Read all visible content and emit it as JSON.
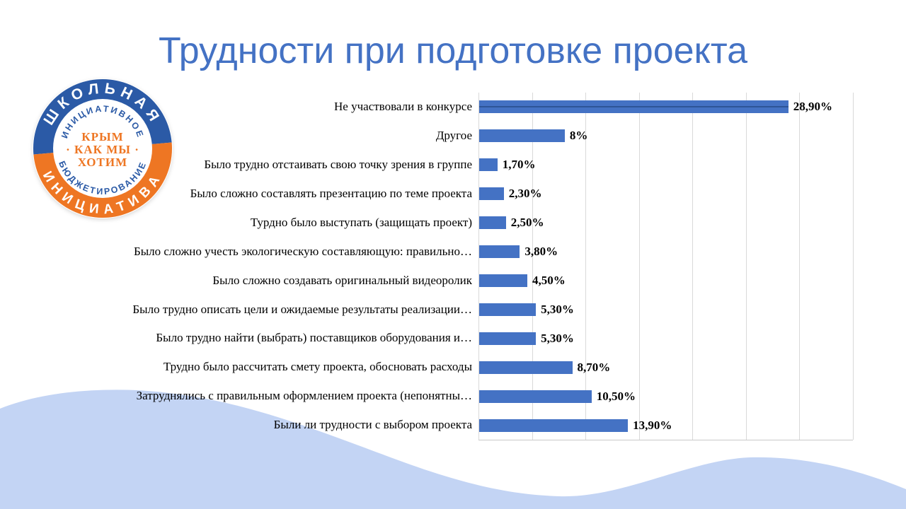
{
  "slide": {
    "title": "Трудности при подготовке проекта"
  },
  "colors": {
    "title": "#4472C4",
    "bar": "#4472C4",
    "bar_inner_line": "#2E5597",
    "gridline": "#D9D9D9",
    "axis_line": "#C9C9C9",
    "wave": "#C3D4F4",
    "logo_blue": "#2B5AA6",
    "logo_orange": "#EE7623",
    "label_text": "#000000"
  },
  "logo": {
    "outer_top": "ШКОЛЬНАЯ",
    "outer_bottom": "ИНИЦИАТИВА",
    "inner_top": "ИНИЦИАТИВНОЕ",
    "inner_bottom": "БЮДЖЕТИРОВАНИЕ",
    "center_line1": "КРЫМ",
    "center_line2": "· КАК МЫ ·",
    "center_line3": "ХОТИМ"
  },
  "chart_data": {
    "type": "bar",
    "orientation": "horizontal",
    "title": "",
    "xlabel": "",
    "ylabel": "",
    "xlim": [
      0,
      35
    ],
    "gridline_step": 5,
    "grid": true,
    "legend": false,
    "value_labels_bold": true,
    "first_bar_center_line": true,
    "categories": [
      "Не участвовали в конкурсе",
      "Другое",
      "Было трудно отстаивать свою точку зрения в группе",
      "Было сложно составлять презентацию по теме проекта",
      "Турдно было выступать (защищать проект)",
      "Было сложно учесть экологическую составляющую: правильно…",
      "Было сложно создавать оригинальный видеоролик",
      "Было трудно описать цели и ожидаемые результаты реализации…",
      "Было трудно найти (выбрать) поставщиков оборудования и…",
      "Трудно было рассчитать смету проекта, обосновать расходы",
      "Затруднялись с правильным оформлением проекта (непонятны…",
      "Были ли трудности с выбором проекта"
    ],
    "values": [
      28.9,
      8,
      1.7,
      2.3,
      2.5,
      3.8,
      4.5,
      5.3,
      5.3,
      8.7,
      10.5,
      13.9
    ],
    "value_labels": [
      "28,90%",
      "8%",
      "1,70%",
      "2,30%",
      "2,50%",
      "3,80%",
      "4,50%",
      "5,30%",
      "5,30%",
      "8,70%",
      "10,50%",
      "13,90%"
    ]
  }
}
